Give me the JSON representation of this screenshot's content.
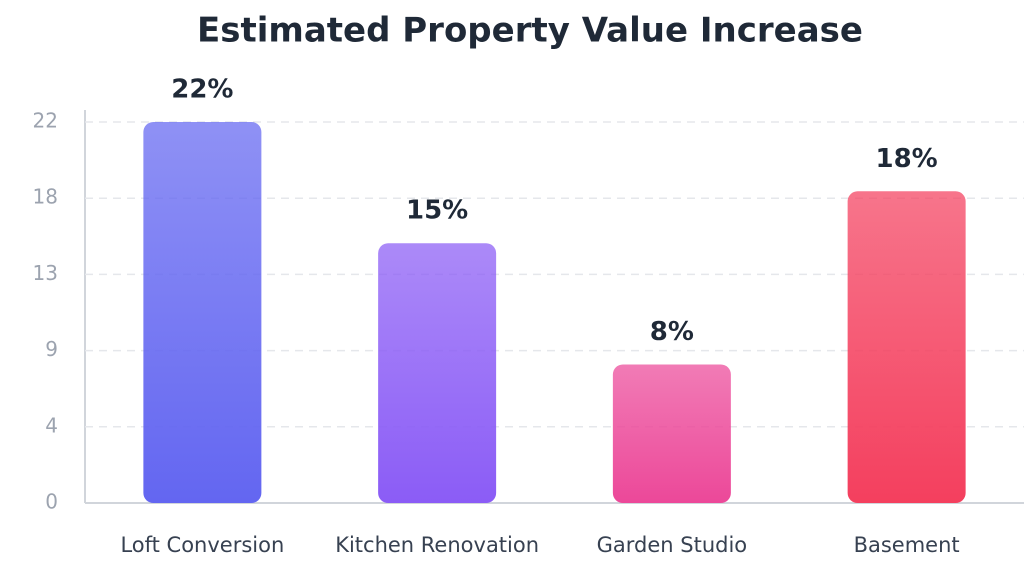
{
  "chart_data": {
    "type": "bar",
    "title": "Estimated Property Value Increase",
    "categories": [
      "Loft Conversion",
      "Kitchen Renovation",
      "Garden Studio",
      "Basement"
    ],
    "values": [
      22,
      15,
      8,
      18
    ],
    "value_labels": [
      "22%",
      "15%",
      "8%",
      "18%"
    ],
    "colors": [
      "#6366f1",
      "#8b5cf6",
      "#ec4899",
      "#f43f5e"
    ],
    "ylim": [
      0,
      22
    ],
    "yticks": [
      0,
      {
        "value": 4.4,
        "label": "4"
      },
      {
        "value": 8.8,
        "label": "9"
      },
      {
        "value": 13.2,
        "label": "13"
      },
      {
        "value": 17.6,
        "label": "18"
      },
      22
    ],
    "grid": true
  }
}
